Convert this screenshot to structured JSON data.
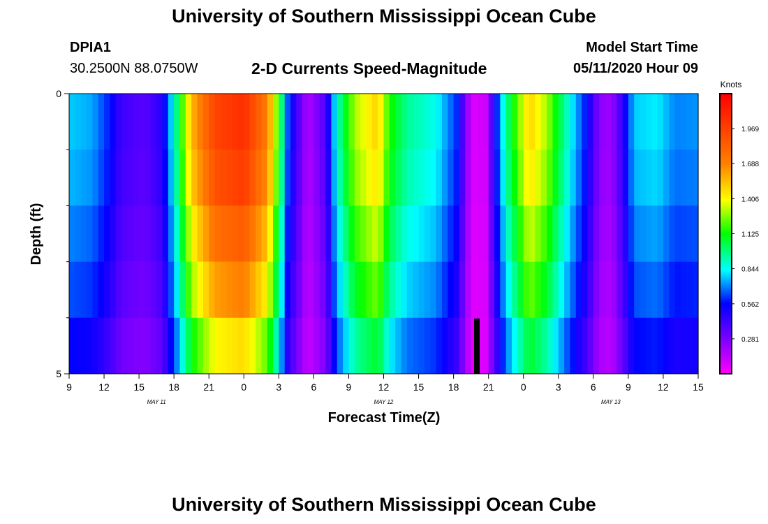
{
  "page_title": "University of Southern Mississippi Ocean Cube",
  "station": {
    "id": "DPIA1",
    "coords": "30.2500N 88.0750W"
  },
  "model": {
    "label": "Model Start Time",
    "time": "05/11/2020 Hour 09"
  },
  "chart_data": {
    "type": "heatmap",
    "title": "2-D Currents Speed-Magnitude",
    "xlabel": "Forecast Time(Z)",
    "ylabel": "Depth (ft)",
    "x_ticks": [
      "9",
      "12",
      "15",
      "18",
      "21",
      "0",
      "3",
      "6",
      "9",
      "12",
      "15",
      "18",
      "21",
      "0",
      "3",
      "6",
      "9",
      "12",
      "15"
    ],
    "x_range_hours": [
      0,
      54
    ],
    "date_labels": [
      {
        "text": "MAY 11",
        "hour": 7.5
      },
      {
        "text": "MAY 12",
        "hour": 27
      },
      {
        "text": "MAY 13",
        "hour": 46.5
      }
    ],
    "y_tick_labels": [
      {
        "value": 0,
        "label": "0"
      },
      {
        "value": 5,
        "label": "5"
      }
    ],
    "y_minor_ticks": [
      1,
      2,
      3,
      4
    ],
    "ylim": [
      0,
      5
    ],
    "colorbar": {
      "label": "Knots",
      "min": 0,
      "max": 2.25,
      "ticks": [
        "1.969",
        "1.688",
        "1.406",
        "1.125",
        "0.844",
        "0.562",
        "0.281"
      ],
      "tick_values": [
        1.969,
        1.688,
        1.406,
        1.125,
        0.844,
        0.562,
        0.281
      ]
    },
    "now_marker_hour": 35,
    "depth_rows": [
      0.5,
      1.5,
      2.5,
      3.5,
      4.5
    ],
    "speed_profile": [
      {
        "hour": 0,
        "speed": 0.78
      },
      {
        "hour": 2,
        "speed": 0.74
      },
      {
        "hour": 3.5,
        "speed": 0.58
      },
      {
        "hour": 4.5,
        "speed": 0.42
      },
      {
        "hour": 6.5,
        "speed": 0.36
      },
      {
        "hour": 8,
        "speed": 0.48
      },
      {
        "hour": 9.3,
        "speed": 1.0
      },
      {
        "hour": 10.5,
        "speed": 1.55
      },
      {
        "hour": 12.5,
        "speed": 1.95
      },
      {
        "hour": 15,
        "speed": 2.05
      },
      {
        "hour": 17,
        "speed": 1.7
      },
      {
        "hour": 18,
        "speed": 1.15
      },
      {
        "hour": 18.8,
        "speed": 0.62
      },
      {
        "hour": 20.5,
        "speed": 0.16
      },
      {
        "hour": 22,
        "speed": 0.38
      },
      {
        "hour": 23,
        "speed": 0.9
      },
      {
        "hour": 24.5,
        "speed": 1.3
      },
      {
        "hour": 26.5,
        "speed": 1.5
      },
      {
        "hour": 27.5,
        "speed": 1.15
      },
      {
        "hour": 29,
        "speed": 0.95
      },
      {
        "hour": 31.5,
        "speed": 0.85
      },
      {
        "hour": 33.3,
        "speed": 0.6
      },
      {
        "hour": 34.5,
        "speed": 0.08
      },
      {
        "hour": 35.8,
        "speed": 0.1
      },
      {
        "hour": 36.5,
        "speed": 0.5
      },
      {
        "hour": 37.5,
        "speed": 0.95
      },
      {
        "hour": 39.5,
        "speed": 1.5
      },
      {
        "hour": 41,
        "speed": 1.3
      },
      {
        "hour": 43,
        "speed": 0.85
      },
      {
        "hour": 44.5,
        "speed": 0.55
      },
      {
        "hour": 45.5,
        "speed": 0.25
      },
      {
        "hour": 46.5,
        "speed": 0.2
      },
      {
        "hour": 47.5,
        "speed": 0.45
      },
      {
        "hour": 48.5,
        "speed": 0.78
      },
      {
        "hour": 50.5,
        "speed": 0.82
      },
      {
        "hour": 52,
        "speed": 0.7
      },
      {
        "hour": 54,
        "speed": 0.72
      }
    ],
    "depth_factors": [
      1.0,
      0.97,
      0.9,
      0.83,
      0.72
    ]
  },
  "colors": {
    "background": "#ffffff",
    "text": "#000000",
    "marker": "#000000"
  }
}
